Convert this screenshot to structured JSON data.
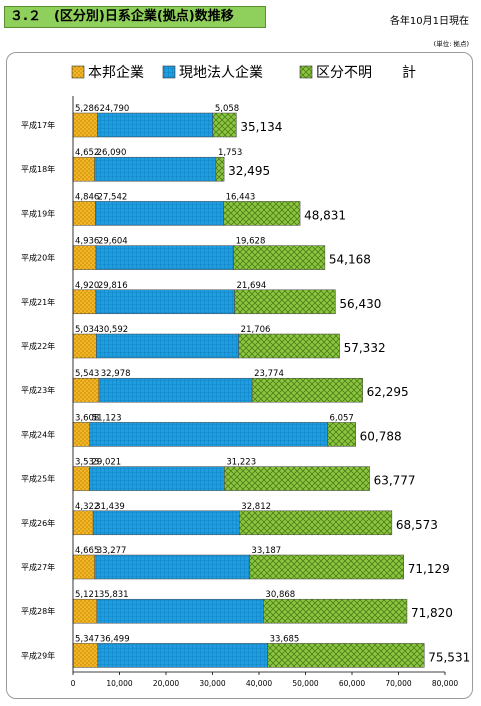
{
  "header": {
    "title": "３.２　(区分別)日系企業(拠点)数推移",
    "as_of": "各年10月1日現在",
    "unit": "(単位: 拠点)"
  },
  "colors": {
    "hq": "#f5b625",
    "local": "#1e9de0",
    "unknown": "#8cc63f",
    "axis": "#000000"
  },
  "chart_data": {
    "type": "bar",
    "orientation": "horizontal",
    "stacked": true,
    "categories": [
      "平成17年",
      "平成18年",
      "平成19年",
      "平成20年",
      "平成21年",
      "平成22年",
      "平成23年",
      "平成24年",
      "平成25年",
      "平成26年",
      "平成27年",
      "平成28年",
      "平成29年"
    ],
    "series": [
      {
        "name": "本邦企業",
        "values": [
          5286,
          4652,
          4846,
          4936,
          4920,
          5034,
          5543,
          3608,
          3533,
          4322,
          4665,
          5121,
          5347
        ]
      },
      {
        "name": "現地法人企業",
        "values": [
          24790,
          26090,
          27542,
          29604,
          29816,
          30592,
          32978,
          51123,
          29021,
          31439,
          33277,
          35831,
          36499
        ]
      },
      {
        "name": "区分不明",
        "values": [
          5058,
          1753,
          16443,
          19628,
          21694,
          21706,
          23774,
          6057,
          31223,
          32812,
          33187,
          30868,
          33685
        ]
      }
    ],
    "totals_label": "計",
    "totals": [
      35134,
      32495,
      48831,
      54168,
      56430,
      57332,
      62295,
      60788,
      63777,
      68573,
      71129,
      71820,
      75531
    ],
    "xlim": [
      0,
      80000
    ],
    "xticks": [
      0,
      10000,
      20000,
      30000,
      40000,
      50000,
      60000,
      70000,
      80000
    ],
    "legend_position": "top",
    "grid": false
  }
}
